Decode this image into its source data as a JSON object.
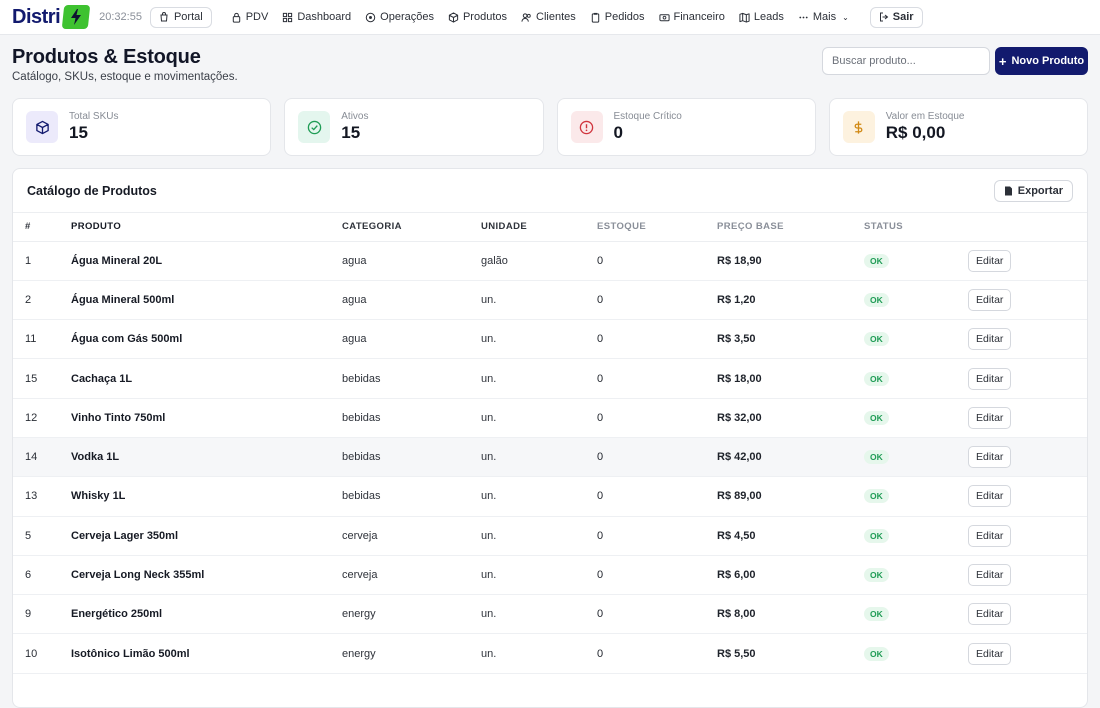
{
  "topbar": {
    "logo_text": "Distri",
    "clock": "20:32:55",
    "portal_label": "Portal",
    "nav": [
      {
        "label": "PDV",
        "icon": "lock-icon"
      },
      {
        "label": "Dashboard",
        "icon": "grid-icon"
      },
      {
        "label": "Operações",
        "icon": "target-icon"
      },
      {
        "label": "Produtos",
        "icon": "box-icon"
      },
      {
        "label": "Clientes",
        "icon": "users-icon"
      },
      {
        "label": "Pedidos",
        "icon": "clipboard-icon"
      },
      {
        "label": "Financeiro",
        "icon": "money-icon"
      },
      {
        "label": "Leads",
        "icon": "map-icon"
      },
      {
        "label": "Mais",
        "icon": "more-icon"
      }
    ],
    "logout_label": "Sair"
  },
  "header": {
    "title": "Produtos & Estoque",
    "subtitle": "Catálogo, SKUs, estoque e movimentações.",
    "search_placeholder": "Buscar produto...",
    "new_button": "Novo Produto"
  },
  "kpis": [
    {
      "label": "Total SKUs",
      "value": "15",
      "icon": "box-icon",
      "bg": "#eceafb",
      "fg": "#121a6e"
    },
    {
      "label": "Ativos",
      "value": "15",
      "icon": "check-circle-icon",
      "bg": "#e4f6ee",
      "fg": "#1f9c55"
    },
    {
      "label": "Estoque Crítico",
      "value": "0",
      "icon": "alert-circle-icon",
      "bg": "#fbe9ea",
      "fg": "#d0343d"
    },
    {
      "label": "Valor em Estoque",
      "value": "R$ 0,00",
      "icon": "dollar-icon",
      "bg": "#fdf2df",
      "fg": "#d18a16"
    }
  ],
  "catalog": {
    "title": "Catálogo de Produtos",
    "export_label": "Exportar",
    "columns": [
      "#",
      "PRODUTO",
      "CATEGORIA",
      "UNIDADE",
      "ESTOQUE",
      "PREÇO BASE",
      "STATUS"
    ],
    "edit_label": "Editar",
    "rows": [
      {
        "id": "1",
        "produto": "Água Mineral 20L",
        "categoria": "agua",
        "unidade": "galão",
        "estoque": "0",
        "preco": "R$ 18,90",
        "status": "OK"
      },
      {
        "id": "2",
        "produto": "Água Mineral 500ml",
        "categoria": "agua",
        "unidade": "un.",
        "estoque": "0",
        "preco": "R$ 1,20",
        "status": "OK"
      },
      {
        "id": "11",
        "produto": "Água com Gás 500ml",
        "categoria": "agua",
        "unidade": "un.",
        "estoque": "0",
        "preco": "R$ 3,50",
        "status": "OK"
      },
      {
        "id": "15",
        "produto": "Cachaça 1L",
        "categoria": "bebidas",
        "unidade": "un.",
        "estoque": "0",
        "preco": "R$ 18,00",
        "status": "OK"
      },
      {
        "id": "12",
        "produto": "Vinho Tinto 750ml",
        "categoria": "bebidas",
        "unidade": "un.",
        "estoque": "0",
        "preco": "R$ 32,00",
        "status": "OK"
      },
      {
        "id": "14",
        "produto": "Vodka 1L",
        "categoria": "bebidas",
        "unidade": "un.",
        "estoque": "0",
        "preco": "R$ 42,00",
        "status": "OK"
      },
      {
        "id": "13",
        "produto": "Whisky 1L",
        "categoria": "bebidas",
        "unidade": "un.",
        "estoque": "0",
        "preco": "R$ 89,00",
        "status": "OK"
      },
      {
        "id": "5",
        "produto": "Cerveja Lager 350ml",
        "categoria": "cerveja",
        "unidade": "un.",
        "estoque": "0",
        "preco": "R$ 4,50",
        "status": "OK"
      },
      {
        "id": "6",
        "produto": "Cerveja Long Neck 355ml",
        "categoria": "cerveja",
        "unidade": "un.",
        "estoque": "0",
        "preco": "R$ 6,00",
        "status": "OK"
      },
      {
        "id": "9",
        "produto": "Energético 250ml",
        "categoria": "energy",
        "unidade": "un.",
        "estoque": "0",
        "preco": "R$ 8,00",
        "status": "OK"
      },
      {
        "id": "10",
        "produto": "Isotônico Limão 500ml",
        "categoria": "energy",
        "unidade": "un.",
        "estoque": "0",
        "preco": "R$ 5,50",
        "status": "OK"
      }
    ]
  }
}
